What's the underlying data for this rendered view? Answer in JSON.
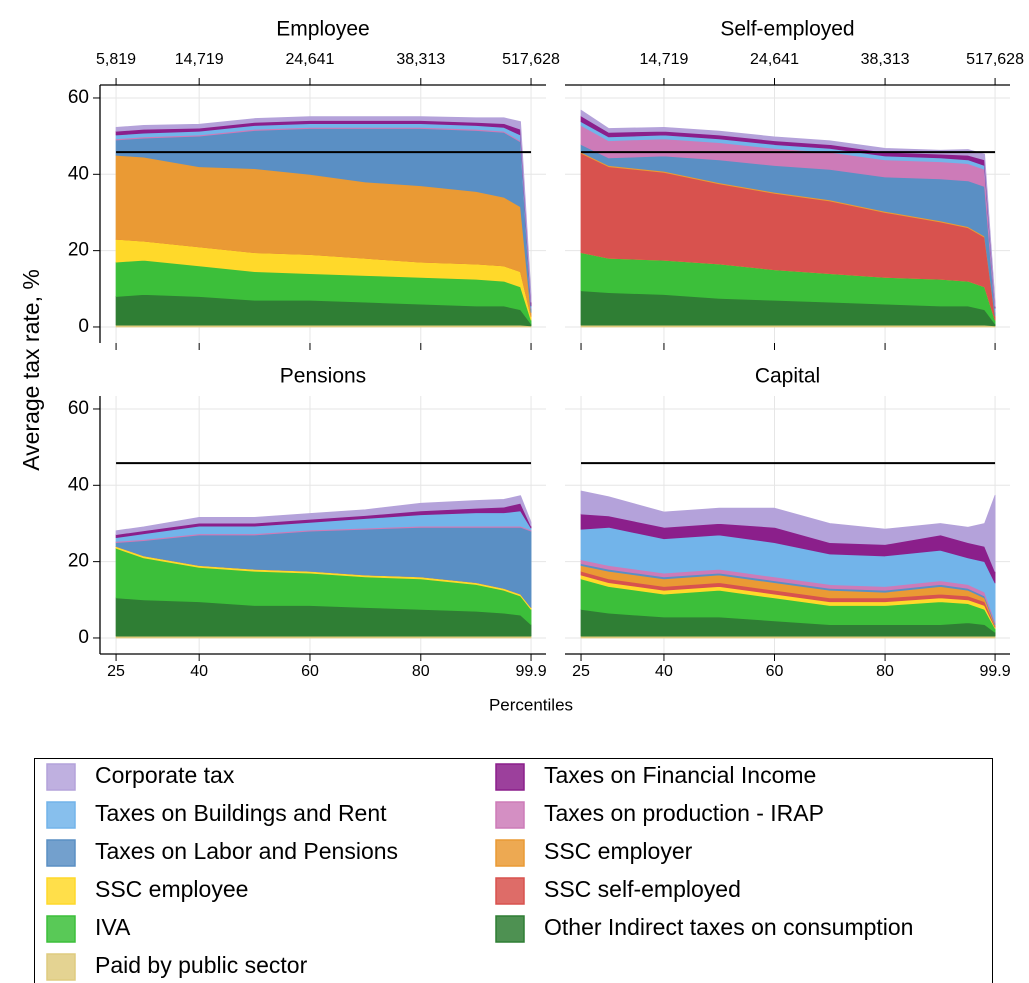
{
  "chart_data": {
    "type": "stacked-area",
    "xlabel": "Percentiles",
    "ylabel": "Average tax rate, %",
    "x": [
      25,
      30,
      40,
      50,
      60,
      70,
      80,
      90,
      95,
      98,
      99.9
    ],
    "xlim": [
      22.1,
      102.6
    ],
    "xticks": [
      25,
      40,
      60,
      80,
      99.9
    ],
    "ylim": [
      -4.2,
      63.4
    ],
    "yticks": [
      0,
      20,
      40,
      60
    ],
    "grid": true,
    "reference_line": 45.8,
    "series": [
      {
        "name": "Paid by public sector",
        "color": "#dfcb7f"
      },
      {
        "name": "Other Indirect taxes on consumption",
        "color": "#2f7e34"
      },
      {
        "name": "IVA",
        "color": "#3cbf3a"
      },
      {
        "name": "SSC employee",
        "color": "#ffd92a"
      },
      {
        "name": "SSC self-employed",
        "color": "#d8524e"
      },
      {
        "name": "SSC employer",
        "color": "#ea9a34"
      },
      {
        "name": "Taxes on Labor and Pensions",
        "color": "#5a8fc4"
      },
      {
        "name": "Taxes on production - IRAP",
        "color": "#cd7bb8"
      },
      {
        "name": "Taxes on Buildings and Rent",
        "color": "#72b4ea"
      },
      {
        "name": "Taxes on Financial Income",
        "color": "#8b1f8b"
      },
      {
        "name": "Corporate tax",
        "color": "#b4a2da"
      }
    ],
    "panels": [
      {
        "title": "Employee",
        "top_ticks": [
          {
            "value": 25,
            "label": "5,819"
          },
          {
            "value": 40,
            "label": "14,719"
          },
          {
            "value": 60,
            "label": "24,641"
          },
          {
            "value": 80,
            "label": "38,313"
          },
          {
            "value": 99.9,
            "label": "517,628"
          }
        ],
        "series": [
          {
            "values": [
              0.5,
              0.5,
              0.5,
              0.5,
              0.5,
              0.5,
              0.5,
              0.5,
              0.5,
              0.5,
              0.3
            ]
          },
          {
            "values": [
              7.5,
              8,
              7.5,
              6.5,
              6.5,
              6,
              5.5,
              5,
              5,
              4,
              0.5
            ]
          },
          {
            "values": [
              9,
              9,
              8,
              7.5,
              7,
              7,
              7,
              7,
              6.5,
              6,
              1
            ]
          },
          {
            "values": [
              6,
              5,
              5,
              5,
              5,
              4.5,
              4,
              4,
              4,
              4,
              1
            ]
          },
          {
            "values": [
              0,
              0,
              0,
              0,
              0,
              0,
              0,
              0,
              0,
              0,
              0
            ]
          },
          {
            "values": [
              22,
              22,
              21,
              22,
              21,
              20,
              20,
              19,
              18,
              17,
              1
            ]
          },
          {
            "values": [
              4,
              5,
              8,
              10,
              12,
              14,
              15,
              16,
              17,
              17,
              1
            ]
          },
          {
            "values": [
              0.3,
              0.3,
              0.3,
              0.3,
              0.3,
              0.3,
              0.3,
              0.3,
              0.3,
              0.3,
              0.2
            ]
          },
          {
            "values": [
              1,
              1,
              1,
              1,
              1,
              1,
              1,
              1,
              1,
              1.5,
              0.5
            ]
          },
          {
            "values": [
              1,
              1,
              0.8,
              0.8,
              0.8,
              0.8,
              0.8,
              0.8,
              1,
              1.5,
              1
            ]
          },
          {
            "values": [
              1,
              1,
              1,
              1,
              1,
              1,
              1,
              1.2,
              1.5,
              2,
              2
            ]
          }
        ]
      },
      {
        "title": "Self-employed",
        "top_ticks": [
          {
            "value": 40,
            "label": "14,719"
          },
          {
            "value": 60,
            "label": "24,641"
          },
          {
            "value": 80,
            "label": "38,313"
          },
          {
            "value": 99.9,
            "label": "517,628"
          }
        ],
        "series": [
          {
            "values": [
              0.5,
              0.5,
              0.5,
              0.5,
              0.5,
              0.5,
              0.5,
              0.5,
              0.5,
              0.5,
              0.3
            ]
          },
          {
            "values": [
              9,
              8.5,
              8,
              7,
              6.5,
              6,
              5.5,
              5,
              5,
              4,
              0.5
            ]
          },
          {
            "values": [
              10,
              9,
              9,
              9,
              8,
              7.5,
              7,
              7,
              6.5,
              6,
              1
            ]
          },
          {
            "values": [
              0,
              0,
              0,
              0,
              0,
              0,
              0,
              0,
              0,
              0,
              0
            ]
          },
          {
            "values": [
              26,
              24,
              23,
              21,
              20,
              19,
              17,
              15,
              14,
              13,
              1
            ]
          },
          {
            "values": [
              0.3,
              0.3,
              0.3,
              0.3,
              0.3,
              0.3,
              0.3,
              0.3,
              0.3,
              0.3,
              0.1
            ]
          },
          {
            "values": [
              2,
              2,
              4,
              6,
              7,
              8,
              9,
              11,
              12,
              13,
              1
            ]
          },
          {
            "values": [
              5,
              4.5,
              4.5,
              4.5,
              4.5,
              4.5,
              4.5,
              4.5,
              4.5,
              4.5,
              0.5
            ]
          },
          {
            "values": [
              1,
              1,
              1,
              1,
              1,
              1,
              1,
              1,
              1,
              1,
              0.5
            ]
          },
          {
            "values": [
              1.5,
              1.2,
              1,
              1,
              1,
              1,
              1,
              1,
              1.2,
              1.5,
              0.5
            ]
          },
          {
            "values": [
              1.5,
              1,
              1,
              1,
              1,
              1,
              1,
              1,
              1.5,
              1.5,
              1
            ]
          }
        ]
      },
      {
        "title": "Pensions",
        "series": [
          {
            "values": [
              0.5,
              0.5,
              0.5,
              0.5,
              0.5,
              0.5,
              0.5,
              0.5,
              0.5,
              0.5,
              0.5
            ]
          },
          {
            "values": [
              10,
              9.5,
              9,
              8,
              8,
              7.5,
              7,
              6.5,
              6,
              5.5,
              3
            ]
          },
          {
            "values": [
              13,
              11,
              9,
              9,
              8.5,
              8,
              8,
              7,
              6,
              5,
              4
            ]
          },
          {
            "values": [
              0.5,
              0.5,
              0.5,
              0.5,
              0.5,
              0.5,
              0.5,
              0.5,
              0.5,
              0.5,
              0.5
            ]
          },
          {
            "values": [
              0,
              0,
              0,
              0,
              0,
              0,
              0,
              0,
              0,
              0,
              0
            ]
          },
          {
            "values": [
              0,
              0,
              0,
              0,
              0,
              0,
              0,
              0,
              0,
              0,
              0
            ]
          },
          {
            "values": [
              1,
              4,
              8,
              9,
              10.5,
              12,
              13,
              14.5,
              16,
              17.5,
              20
            ]
          },
          {
            "values": [
              0.3,
              0.3,
              0.3,
              0.3,
              0.3,
              0.3,
              0.3,
              0.3,
              0.3,
              0.3,
              0.3
            ]
          },
          {
            "values": [
              1,
              1.5,
              2,
              2,
              2,
              2.5,
              3,
              3.5,
              3.5,
              4,
              0.5
            ]
          },
          {
            "values": [
              0.8,
              0.8,
              0.8,
              0.8,
              0.8,
              0.8,
              1,
              1.2,
              1.5,
              2,
              0.5
            ]
          },
          {
            "values": [
              1,
              1,
              1.5,
              1.5,
              1.5,
              1.5,
              2,
              2,
              2,
              2,
              1
            ]
          }
        ]
      },
      {
        "title": "Capital",
        "series": [
          {
            "values": [
              0.5,
              0.5,
              0.5,
              0.5,
              0.5,
              0.5,
              0.5,
              0.5,
              0.5,
              0.5,
              0.5
            ]
          },
          {
            "values": [
              7,
              6,
              5,
              5,
              4,
              3,
              3,
              3,
              3.5,
              3,
              1
            ]
          },
          {
            "values": [
              8,
              7,
              6,
              7,
              6,
              5,
              5,
              6,
              5,
              4,
              1
            ]
          },
          {
            "values": [
              1,
              1,
              1,
              1,
              1,
              1,
              1,
              1,
              1,
              1,
              0.3
            ]
          },
          {
            "values": [
              1,
              1,
              1,
              1,
              1,
              1,
              1,
              1,
              1,
              1,
              0.3
            ]
          },
          {
            "values": [
              1.5,
              2,
              2,
              2,
              2,
              2,
              1.5,
              2,
              1.5,
              1,
              0.3
            ]
          },
          {
            "values": [
              0.5,
              0.5,
              0.5,
              0.5,
              0.5,
              0.5,
              0.5,
              0.5,
              0.5,
              0.5,
              0.5
            ]
          },
          {
            "values": [
              1,
              1,
              1,
              1,
              1,
              1,
              1,
              1,
              1,
              1,
              0.5
            ]
          },
          {
            "values": [
              8,
              10,
              9,
              9,
              9,
              8,
              8,
              8,
              7,
              8,
              10
            ]
          },
          {
            "values": [
              4,
              3,
              3,
              3,
              4,
              3,
              3,
              4,
              4,
              4,
              3
            ]
          },
          {
            "values": [
              6,
              5,
              4,
              4,
              5,
              5,
              4,
              3,
              4,
              6,
              20
            ]
          }
        ]
      }
    ]
  }
}
